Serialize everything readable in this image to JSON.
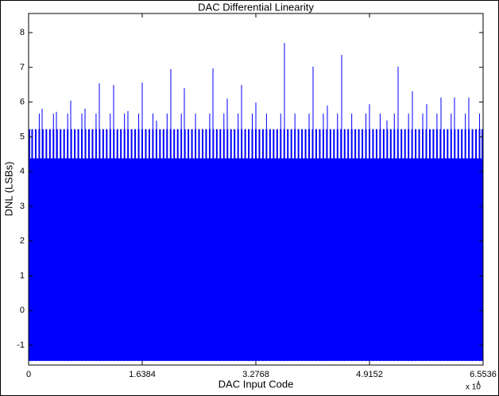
{
  "chart_data": {
    "type": "stem",
    "title": "DAC Differential Linearity",
    "x_label": "DAC Input Code",
    "y_label": "DNL (LSBs)",
    "x_multiplier": "x 10",
    "x_multiplier_exp": "4",
    "xlim": [
      0,
      65536
    ],
    "xticks": [
      0,
      {
        "value": 16384,
        "label": "1.6384"
      },
      {
        "value": 32768,
        "label": "3.2768"
      },
      {
        "value": 49152,
        "label": "4.9152"
      },
      {
        "value": 65536,
        "label": "6.5536"
      }
    ],
    "ylim": [
      -1.57,
      8.55
    ],
    "yticks": [
      -1,
      0,
      1,
      2,
      3,
      4,
      5,
      6,
      7,
      8
    ],
    "baseline": -1.45,
    "fill_band": [
      -1.45,
      4.38
    ],
    "color": "#0000ff",
    "series": [
      {
        "color": "#0000ff",
        "x": [
          0,
          512,
          1024,
          1536,
          2048,
          2560,
          3072,
          3584,
          4096,
          4608,
          5120,
          5632,
          6144,
          6656,
          7168,
          7680,
          8192,
          8704,
          9216,
          9728,
          10240,
          10752,
          11264,
          11776,
          12288,
          12800,
          13312,
          13824,
          14336,
          14848,
          15360,
          15872,
          16384,
          16896,
          17408,
          17920,
          18432,
          18944,
          19456,
          19968,
          20480,
          20992,
          21504,
          22016,
          22528,
          23040,
          23552,
          24064,
          24576,
          25088,
          25600,
          26112,
          26624,
          27136,
          27648,
          28160,
          28672,
          29184,
          29696,
          30208,
          30720,
          31232,
          31744,
          32256,
          32768,
          33280,
          33792,
          34304,
          34816,
          35328,
          35840,
          36352,
          36864,
          37376,
          37888,
          38400,
          38912,
          39424,
          39936,
          40448,
          40960,
          41472,
          41984,
          42496,
          43008,
          43520,
          44032,
          44544,
          45056,
          45568,
          46080,
          46592,
          47104,
          47616,
          48128,
          48640,
          49152,
          49664,
          50176,
          50688,
          51200,
          51712,
          52224,
          52736,
          53248,
          53760,
          54272,
          54784,
          55296,
          55808,
          56320,
          56832,
          57344,
          57856,
          58368,
          58880,
          59392,
          59904,
          60416,
          60928,
          61440,
          61952,
          62464,
          62976,
          63488,
          64000,
          64512,
          65024,
          65536
        ],
        "values": [
          5.22,
          5.22,
          5.22,
          5.22,
          5.22,
          5.22,
          5.22,
          5.22,
          5.22,
          5.22,
          5.22,
          5.22,
          5.22,
          5.22,
          5.22,
          5.22,
          5.22,
          5.22,
          5.22,
          5.22,
          5.22,
          5.22,
          5.22,
          5.22,
          5.22,
          5.22,
          5.22,
          5.22,
          5.22,
          5.22,
          5.22,
          5.22,
          5.22,
          5.22,
          5.22,
          5.22,
          5.22,
          5.22,
          5.22,
          5.22,
          5.22,
          5.22,
          5.22,
          5.22,
          5.22,
          5.22,
          5.22,
          5.22,
          5.22,
          5.22,
          5.22,
          5.22,
          5.22,
          5.22,
          5.22,
          5.22,
          5.22,
          5.22,
          5.22,
          5.22,
          5.22,
          5.22,
          5.22,
          5.22,
          5.22,
          5.22,
          5.22,
          5.22,
          5.22,
          5.22,
          5.22,
          5.22,
          5.22,
          5.22,
          5.22,
          5.22,
          5.22,
          5.22,
          5.22,
          5.22,
          5.22,
          5.22,
          5.22,
          5.22,
          5.22,
          5.22,
          5.22,
          5.22,
          5.22,
          5.22,
          5.22,
          5.22,
          5.22,
          5.22,
          5.22,
          5.22,
          5.22,
          5.22,
          5.22,
          5.22,
          5.22,
          5.22,
          5.22,
          5.22,
          5.22,
          5.22,
          5.22,
          5.22,
          5.22,
          5.22,
          5.22,
          5.22,
          5.22,
          5.22,
          5.22,
          5.22,
          5.22,
          5.22,
          5.22,
          5.22,
          5.22,
          5.22,
          5.22,
          5.22,
          5.22,
          5.22,
          5.22,
          5.22,
          5.22
        ]
      },
      {
        "color": "#0000ff",
        "x": [
          1536,
          3584,
          5632,
          7680,
          9728,
          11776,
          13824,
          15872,
          17920,
          19968,
          22016,
          24064,
          26112,
          28160,
          30208,
          32256,
          34304,
          36352,
          38400,
          40448,
          42496,
          44544,
          46592,
          48640,
          50688,
          52736,
          54784,
          56832,
          58880,
          60928,
          62976,
          65024
        ],
        "values": [
          5.67,
          5.67,
          5.67,
          5.67,
          5.67,
          5.67,
          5.67,
          5.67,
          5.67,
          5.67,
          5.67,
          5.67,
          5.67,
          5.67,
          5.67,
          5.67,
          5.67,
          5.67,
          5.67,
          5.67,
          5.67,
          5.67,
          5.67,
          5.67,
          5.67,
          5.67,
          5.67,
          5.67,
          5.67,
          5.67,
          5.67,
          5.67
        ]
      },
      {
        "color": "#0000ff",
        "x": [
          1948,
          4010,
          6072,
          8134,
          10197,
          12259,
          14321,
          16384,
          18446,
          20508,
          22456,
          26580,
          28643,
          30705,
          32768,
          36892,
          41017,
          43079,
          45141,
          49151,
          51672,
          53276,
          55338,
          57400,
          59463,
          61410,
          63472
        ],
        "values": [
          5.81,
          5.72,
          6.04,
          5.81,
          6.54,
          6.49,
          5.74,
          6.56,
          5.47,
          6.95,
          6.4,
          6.97,
          6.1,
          6.49,
          5.99,
          7.7,
          7.02,
          5.9,
          7.36,
          5.94,
          5.47,
          7.02,
          6.31,
          5.94,
          6.13,
          6.13,
          6.13
        ]
      }
    ]
  }
}
